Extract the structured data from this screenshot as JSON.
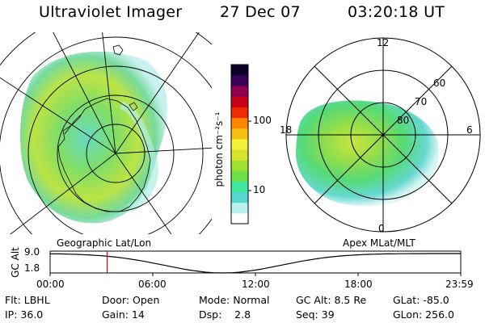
{
  "header": {
    "instrument": "Ultraviolet Imager",
    "date": "27 Dec 07",
    "time": "03:20:18 UT"
  },
  "left_panel": {
    "caption": "Geographic Lat/Lon"
  },
  "right_panel": {
    "caption": "Apex MLat/MLT",
    "mlt_labels": [
      "12",
      "18",
      "6",
      "0"
    ],
    "mlat_labels": [
      "60",
      "70",
      "80"
    ]
  },
  "colorbar": {
    "unit_label": "photon cm⁻²s⁻¹",
    "ticks": [
      "100",
      "10"
    ],
    "colors": [
      "#ffffff",
      "#b9f1ef",
      "#54d8d0",
      "#40e8a0",
      "#6ee04a",
      "#a0e030",
      "#d8e42a",
      "#f4f038",
      "#f6c010",
      "#ff8400",
      "#f02a00",
      "#c8001a",
      "#900050",
      "#3a005a",
      "#0a0028"
    ]
  },
  "timeline": {
    "axis_label": "GC Alt",
    "y_ticks": [
      "9.0",
      "1.8"
    ],
    "x_ticks": [
      "00:00",
      "06:00",
      "12:00",
      "18:00",
      "23:59"
    ],
    "marker_time": "03:20"
  },
  "info": {
    "row1": [
      "Flt: LBHL",
      "Door: Open",
      "Mode: Normal",
      "GC Alt: 8.5 Re",
      "GLat: -85.0"
    ],
    "row2": [
      "IP: 36.0",
      "Gain: 14",
      "Dsp:    2.8",
      "Seq: 39",
      "GLon: 256.0"
    ]
  }
}
